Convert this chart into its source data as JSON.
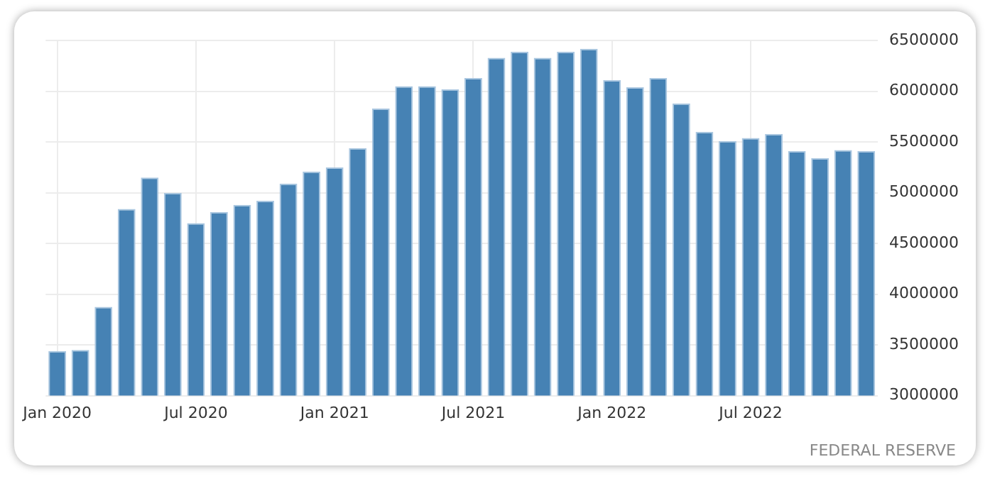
{
  "chart_data": {
    "type": "bar",
    "categories": [
      "Jan 2020",
      null,
      null,
      null,
      null,
      null,
      "Jul 2020",
      null,
      null,
      null,
      null,
      null,
      "Jan 2021",
      null,
      null,
      null,
      null,
      null,
      "Jul 2021",
      null,
      null,
      null,
      null,
      null,
      "Jan 2022",
      null,
      null,
      null,
      null,
      null,
      "Jul 2022",
      null,
      null,
      null,
      null,
      null
    ],
    "values": [
      3440000,
      3450000,
      3875000,
      4840000,
      5150000,
      5000000,
      4700000,
      4810000,
      4880000,
      4920000,
      5090000,
      5210000,
      5250000,
      5440000,
      5830000,
      6050000,
      6050000,
      6020000,
      6130000,
      6330000,
      6390000,
      6330000,
      6390000,
      6420000,
      6110000,
      6040000,
      6130000,
      5880000,
      5600000,
      5510000,
      5540000,
      5580000,
      5410000,
      5340000,
      5420000,
      5410000
    ],
    "color": "#4682b4",
    "ylim": [
      3000000,
      6500000
    ],
    "yticks": [
      3000000,
      3500000,
      4000000,
      4500000,
      5000000,
      5500000,
      6000000,
      6500000
    ],
    "grid": true,
    "annotations": [
      "FEDERAL RESERVE"
    ]
  }
}
